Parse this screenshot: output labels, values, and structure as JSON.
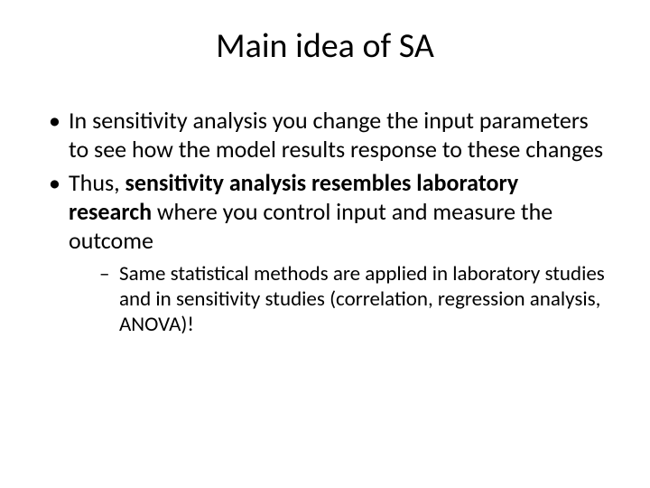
{
  "slide": {
    "title": "Main idea of SA",
    "bullets": [
      {
        "text": "In sensitivity analysis you change the input parameters to see how the model results response to these changes"
      },
      {
        "prefix": "Thus, ",
        "bold": "sensitivity analysis resembles laboratory research",
        "suffix": " where you control input and measure the outcome"
      }
    ],
    "subbullet": "Same statistical methods are applied in laboratory studies and in sensitivity studies (correlation, regression analysis, ANOVA)!"
  },
  "styling": {
    "background_color": "#ffffff",
    "text_color": "#000000",
    "title_fontsize": 38,
    "bullet_fontsize": 26,
    "subbullet_fontsize": 23,
    "font_family": "Calibri"
  }
}
